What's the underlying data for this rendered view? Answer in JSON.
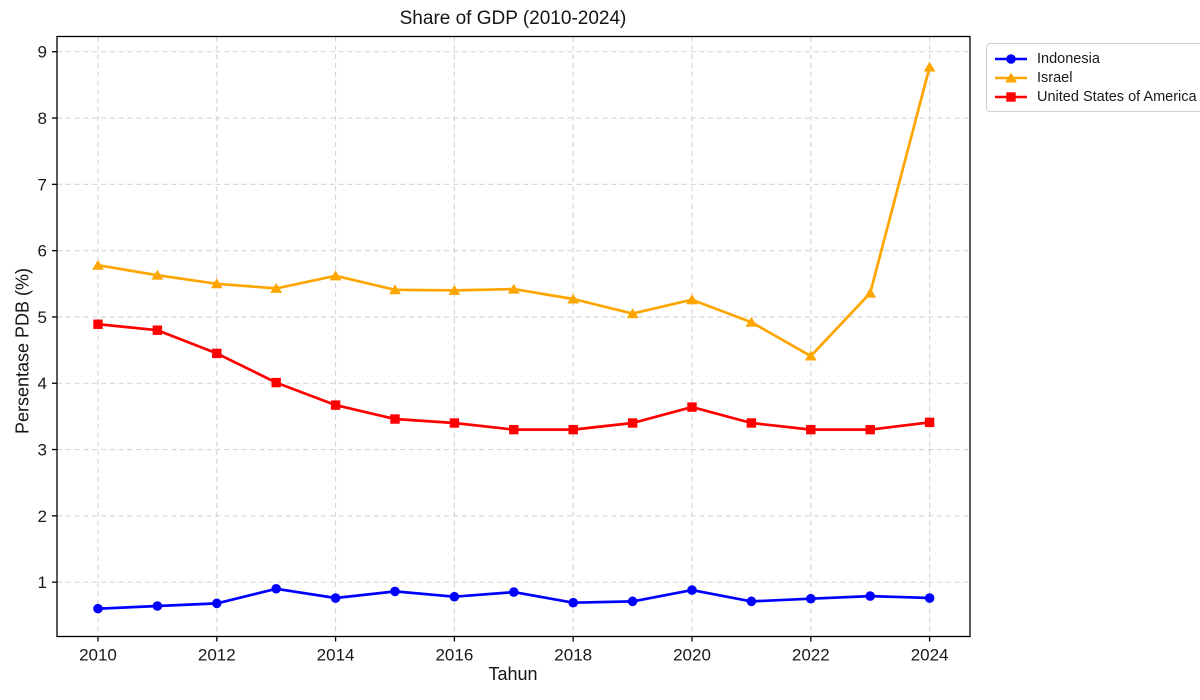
{
  "chart_data": {
    "type": "line",
    "title": "Share of GDP (2010-2024)",
    "xlabel": "Tahun",
    "ylabel": "Persentase PDB (%)",
    "x": [
      2010,
      2011,
      2012,
      2013,
      2014,
      2015,
      2016,
      2017,
      2018,
      2019,
      2020,
      2021,
      2022,
      2023,
      2024
    ],
    "x_ticks": [
      2010,
      2012,
      2014,
      2016,
      2018,
      2020,
      2022,
      2024
    ],
    "y_ticks": [
      1,
      2,
      3,
      4,
      5,
      6,
      7,
      8,
      9
    ],
    "xlim": [
      2009.31,
      2024.68
    ],
    "ylim": [
      0.18,
      9.23
    ],
    "grid": true,
    "legend_position": "outside-top-right",
    "colors": {
      "background": "#ffffff",
      "grid": "#d4d4d4",
      "axis": "#000000",
      "text": "#1a1a1a",
      "legend_border": "#cfcfcf"
    },
    "series": [
      {
        "name": "Indonesia",
        "color": "#0000ff",
        "marker": "circle",
        "values": [
          0.6,
          0.64,
          0.68,
          0.9,
          0.76,
          0.86,
          0.78,
          0.85,
          0.69,
          0.71,
          0.88,
          0.71,
          0.75,
          0.79,
          0.76
        ]
      },
      {
        "name": "Israel",
        "color": "#ffa500",
        "marker": "triangle",
        "values": [
          5.78,
          5.63,
          5.5,
          5.43,
          5.62,
          5.41,
          5.4,
          5.42,
          5.27,
          5.05,
          5.26,
          4.92,
          4.41,
          5.36,
          8.77
        ]
      },
      {
        "name": "United States of America",
        "color": "#ff0000",
        "marker": "square",
        "values": [
          4.89,
          4.8,
          4.45,
          4.01,
          3.67,
          3.46,
          3.4,
          3.3,
          3.3,
          3.4,
          3.64,
          3.4,
          3.3,
          3.3,
          3.41
        ]
      }
    ]
  }
}
